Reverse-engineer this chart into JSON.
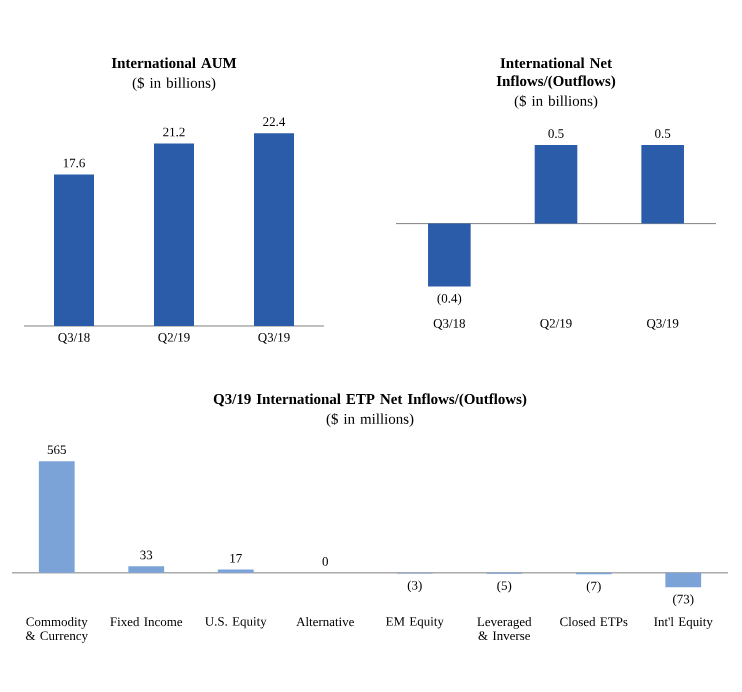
{
  "chart_data": [
    {
      "type": "bar",
      "title": "International AUM",
      "subtitle": "($ in billions)",
      "categories": [
        "Q3/18",
        "Q2/19",
        "Q3/19"
      ],
      "values": [
        17.6,
        21.2,
        22.4
      ],
      "color": "#2a5caa",
      "data_labels": true
    },
    {
      "type": "bar",
      "title": "International Net Inflows/(Outflows)",
      "subtitle": "($ in billions)",
      "categories": [
        "Q3/18",
        "Q2/19",
        "Q3/19"
      ],
      "values": [
        -0.4,
        0.5,
        0.5
      ],
      "value_labels": [
        "(0.4)",
        "0.5",
        "0.5"
      ],
      "color": "#2a5caa"
    },
    {
      "type": "bar",
      "title": "Q3/19 International ETP Net Inflows/(Outflows)",
      "subtitle": "($ in millions)",
      "categories": [
        "Commodity & Currency",
        "Fixed Income",
        "U.S. Equity",
        "Alternative",
        "EM Equity",
        "Leveraged & Inverse",
        "Closed ETPs",
        "Int'l Equity"
      ],
      "values": [
        565,
        33,
        17,
        0,
        -3,
        -5,
        -7,
        -73
      ],
      "value_labels": [
        "565",
        "33",
        "17",
        "0",
        "(3)",
        "(5)",
        "(7)",
        "(73)"
      ],
      "color": "#7ba3d8"
    }
  ]
}
